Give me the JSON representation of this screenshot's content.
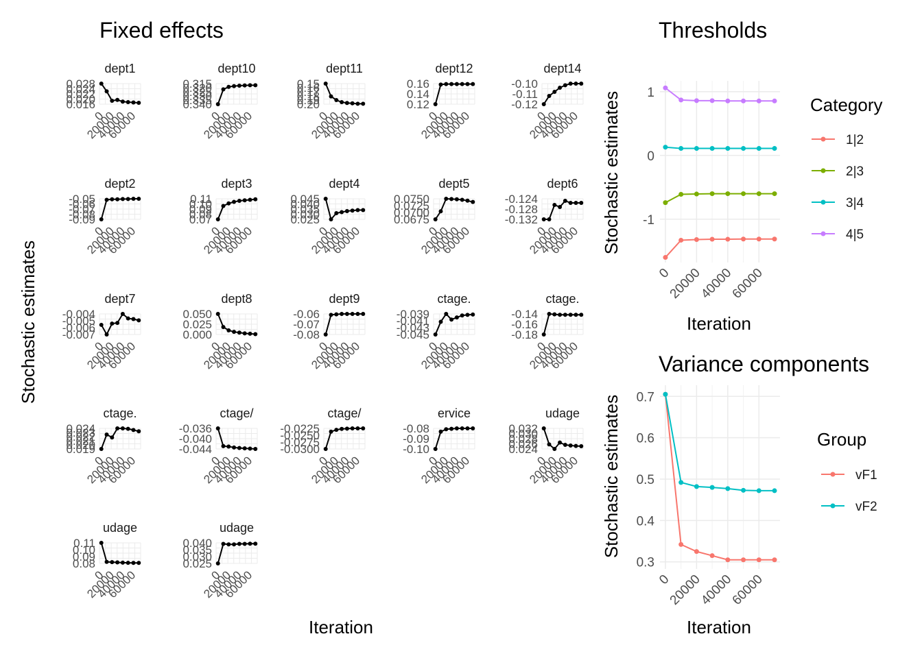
{
  "colors": {
    "grid": "#ebebeb",
    "tick_text": "#4d4d4d",
    "fixed_series": "#000000",
    "c12": "#F8766D",
    "c23": "#7CAE00",
    "c34": "#00BFC4",
    "c45": "#C77CFF",
    "vF1": "#F8766D",
    "vF2": "#00BFC4"
  },
  "fixed_effects": {
    "title": "Fixed effects",
    "xlabel": "Iteration",
    "ylabel": "Stochastic estimates"
  },
  "thresholds": {
    "title": "Thresholds",
    "xlabel": "Iteration",
    "ylabel": "Stochastic estimates",
    "legend_title": "Category"
  },
  "variance": {
    "title": "Variance components",
    "xlabel": "Iteration",
    "ylabel": "Stochastic estimates",
    "legend_title": "Group"
  },
  "chart_data": [
    {
      "type": "line",
      "title": "Fixed effects",
      "xlabel": "Iteration",
      "ylabel": "Stochastic estimates",
      "facets": true,
      "x": [
        0,
        10000,
        20000,
        30000,
        40000,
        50000,
        60000,
        70000
      ],
      "x_ticks": [
        "0",
        "20000",
        "40000",
        "60000"
      ],
      "panels": [
        {
          "name": "dept1",
          "y_ticks": [
            "0.028",
            "0.024",
            "0.022",
            "0.020",
            "0.016"
          ],
          "ylim": [
            0.016,
            0.028
          ],
          "values": [
            0.028,
            0.0235,
            0.018,
            0.0185,
            0.0175,
            0.0172,
            0.017,
            0.0168
          ]
        },
        {
          "name": "dept10",
          "y_ticks": [
            "0.315",
            "0.320",
            "0.325",
            "0.330",
            "0.335",
            "0.340"
          ],
          "ylim": [
            -0.34,
            -0.315
          ],
          "values": [
            -0.34,
            -0.322,
            -0.319,
            -0.318,
            -0.3175,
            -0.3172,
            -0.317,
            -0.317
          ]
        },
        {
          "name": "dept11",
          "y_ticks": [
            "0.15",
            "0.16",
            "0.17",
            "0.18",
            "0.19",
            "0.20"
          ],
          "ylim": [
            -0.2,
            -0.15
          ],
          "values": [
            -0.15,
            -0.181,
            -0.19,
            -0.195,
            -0.197,
            -0.198,
            -0.199,
            -0.199
          ]
        },
        {
          "name": "dept12",
          "y_ticks": [
            "0.16",
            "0.14",
            "0.12"
          ],
          "ylim": [
            0.12,
            0.165
          ],
          "values": [
            0.12,
            0.163,
            0.164,
            0.164,
            0.164,
            0.164,
            0.164,
            0.164
          ]
        },
        {
          "name": "dept14",
          "y_ticks": [
            "-0.10",
            "-0.11",
            "-0.12"
          ],
          "ylim": [
            -0.125,
            -0.1
          ],
          "values": [
            -0.125,
            -0.115,
            -0.11,
            -0.105,
            -0.102,
            -0.1,
            -0.1,
            -0.1
          ]
        },
        {
          "name": "dept2",
          "y_ticks": [
            "-0.05",
            "-0.06",
            "-0.07",
            "-0.08",
            "-0.09"
          ],
          "ylim": [
            -0.09,
            -0.05
          ],
          "values": [
            -0.09,
            -0.052,
            -0.051,
            -0.051,
            -0.0505,
            -0.0505,
            -0.05,
            -0.05
          ]
        },
        {
          "name": "dept3",
          "y_ticks": [
            "0.11",
            "0.10",
            "0.09",
            "0.08",
            "0.07"
          ],
          "ylim": [
            0.07,
            0.11
          ],
          "values": [
            0.07,
            0.096,
            0.101,
            0.104,
            0.106,
            0.107,
            0.108,
            0.109
          ]
        },
        {
          "name": "dept4",
          "y_ticks": [
            "0.045",
            "0.040",
            "0.035",
            "0.030",
            "0.025"
          ],
          "ylim": [
            0.025,
            0.045
          ],
          "values": [
            0.045,
            0.025,
            0.031,
            0.032,
            0.033,
            0.0335,
            0.034,
            0.034
          ]
        },
        {
          "name": "dept5",
          "y_ticks": [
            "0.0750",
            "0.0725",
            "0.0700",
            "0.0675"
          ],
          "ylim": [
            0.0675,
            0.0752
          ],
          "values": [
            0.0675,
            0.0705,
            0.0752,
            0.0751,
            0.075,
            0.0748,
            0.0745,
            0.074
          ]
        },
        {
          "name": "dept6",
          "y_ticks": [
            "-0.124",
            "-0.128",
            "-0.132"
          ],
          "ylim": [
            -0.132,
            -0.122
          ],
          "values": [
            -0.132,
            -0.132,
            -0.125,
            -0.126,
            -0.123,
            -0.124,
            -0.124,
            -0.124
          ]
        },
        {
          "name": "dept7",
          "y_ticks": [
            "-0.004",
            "-0.005",
            "-0.006",
            "-0.007"
          ],
          "ylim": [
            -0.007,
            -0.0038
          ],
          "values": [
            -0.0055,
            -0.007,
            -0.0053,
            -0.0052,
            -0.0038,
            -0.0045,
            -0.0046,
            -0.0048
          ]
        },
        {
          "name": "dept8",
          "y_ticks": [
            "0.050",
            "0.025",
            "0.000"
          ],
          "ylim": [
            0.0,
            0.055
          ],
          "values": [
            0.055,
            0.02,
            0.011,
            0.007,
            0.005,
            0.003,
            0.002,
            0.001
          ]
        },
        {
          "name": "dept9",
          "y_ticks": [
            "-0.06",
            "-0.07",
            "-0.08"
          ],
          "ylim": [
            -0.08,
            -0.058
          ],
          "values": [
            -0.08,
            -0.059,
            -0.0585,
            -0.058,
            -0.058,
            -0.058,
            -0.058,
            -0.058
          ]
        },
        {
          "name": "ctage.",
          "y_ticks": [
            "-0.039",
            "-0.041",
            "-0.043",
            "-0.045"
          ],
          "ylim": [
            -0.045,
            -0.0385
          ],
          "values": [
            -0.045,
            -0.041,
            -0.0385,
            -0.0403,
            -0.0396,
            -0.039,
            -0.0388,
            -0.0387
          ]
        },
        {
          "name": "ctage.",
          "y_ticks": [
            "-0.14",
            "-0.16",
            "-0.18"
          ],
          "ylim": [
            -0.185,
            -0.135
          ],
          "values": [
            -0.185,
            -0.135,
            -0.136,
            -0.137,
            -0.137,
            -0.137,
            -0.137,
            -0.137
          ]
        },
        {
          "name": "ctage.",
          "y_ticks": [
            "0.024",
            "0.023",
            "0.022",
            "0.021",
            "0.020",
            "0.019"
          ],
          "ylim": [
            0.019,
            0.024
          ],
          "values": [
            0.019,
            0.0225,
            0.0218,
            0.024,
            0.024,
            0.0239,
            0.0236,
            0.0233
          ]
        },
        {
          "name": "ctage/",
          "y_ticks": [
            "-0.036",
            "-0.040",
            "-0.044"
          ],
          "ylim": [
            -0.046,
            -0.035
          ],
          "values": [
            -0.035,
            -0.0445,
            -0.0447,
            -0.0452,
            -0.0455,
            -0.0457,
            -0.0458,
            -0.046
          ]
        },
        {
          "name": "ctage/",
          "y_ticks": [
            "-0.0225",
            "-0.0250",
            "-0.0275",
            "-0.0300"
          ],
          "ylim": [
            -0.0305,
            -0.0222
          ],
          "values": [
            -0.0305,
            -0.0235,
            -0.0228,
            -0.0224,
            -0.0223,
            -0.0222,
            -0.0222,
            -0.0222
          ]
        },
        {
          "name": "ervice",
          "y_ticks": [
            "-0.08",
            "-0.09",
            "-0.10"
          ],
          "ylim": [
            -0.105,
            -0.08
          ],
          "values": [
            -0.105,
            -0.084,
            -0.081,
            -0.0805,
            -0.08,
            -0.08,
            -0.08,
            -0.08
          ]
        },
        {
          "name": "udage",
          "y_ticks": [
            "0.032",
            "0.030",
            "0.028",
            "0.026",
            "0.024"
          ],
          "ylim": [
            0.023,
            0.032
          ],
          "values": [
            0.032,
            0.025,
            0.023,
            0.0258,
            0.0248,
            0.0245,
            0.0243,
            0.0242
          ]
        },
        {
          "name": "udage",
          "y_ticks": [
            "0.11",
            "0.10",
            "0.09",
            "0.08"
          ],
          "ylim": [
            0.075,
            0.115
          ],
          "values": [
            0.115,
            0.078,
            0.0775,
            0.077,
            0.0765,
            0.0762,
            0.076,
            0.076
          ]
        },
        {
          "name": "udage",
          "y_ticks": [
            "0.040",
            "0.035",
            "0.030",
            "0.025"
          ],
          "ylim": [
            0.022,
            0.042
          ],
          "values": [
            0.022,
            0.041,
            0.0405,
            0.0405,
            0.041,
            0.041,
            0.0412,
            0.0412
          ]
        }
      ]
    },
    {
      "type": "line",
      "title": "Thresholds",
      "xlabel": "Iteration",
      "ylabel": "Stochastic estimates",
      "legend_title": "Category",
      "legend_position": "right",
      "x": [
        0,
        10000,
        20000,
        30000,
        40000,
        50000,
        60000,
        70000
      ],
      "x_ticks": [
        "0",
        "20000",
        "40000",
        "60000"
      ],
      "y_ticks": [
        1,
        0,
        -1
      ],
      "ylim": [
        -1.68,
        1.17
      ],
      "xlim": [
        -3500,
        73500
      ],
      "series": [
        {
          "name": "1|2",
          "color": "#F8766D",
          "values": [
            -1.6,
            -1.33,
            -1.32,
            -1.315,
            -1.315,
            -1.312,
            -1.312,
            -1.312
          ]
        },
        {
          "name": "2|3",
          "color": "#7CAE00",
          "values": [
            -0.74,
            -0.61,
            -0.605,
            -0.6,
            -0.6,
            -0.6,
            -0.6,
            -0.6
          ]
        },
        {
          "name": "3|4",
          "color": "#00BFC4",
          "values": [
            0.13,
            0.11,
            0.11,
            0.11,
            0.11,
            0.11,
            0.11,
            0.11
          ]
        },
        {
          "name": "4|5",
          "color": "#C77CFF",
          "values": [
            1.06,
            0.87,
            0.86,
            0.86,
            0.855,
            0.855,
            0.855,
            0.855
          ]
        }
      ]
    },
    {
      "type": "line",
      "title": "Variance components",
      "xlabel": "Iteration",
      "ylabel": "Stochastic estimates",
      "legend_title": "Group",
      "legend_position": "right",
      "x": [
        0,
        10000,
        20000,
        30000,
        40000,
        50000,
        60000,
        70000
      ],
      "x_ticks": [
        "0",
        "20000",
        "40000",
        "60000"
      ],
      "y_ticks": [
        0.7,
        0.6,
        0.5,
        0.4,
        0.3
      ],
      "ylim": [
        0.283,
        0.727
      ],
      "xlim": [
        -3500,
        73500
      ],
      "series": [
        {
          "name": "vF1",
          "color": "#F8766D",
          "values": [
            0.705,
            0.342,
            0.325,
            0.315,
            0.305,
            0.305,
            0.305,
            0.305
          ]
        },
        {
          "name": "vF2",
          "color": "#00BFC4",
          "values": [
            0.705,
            0.492,
            0.482,
            0.48,
            0.477,
            0.473,
            0.472,
            0.472
          ]
        }
      ]
    }
  ]
}
